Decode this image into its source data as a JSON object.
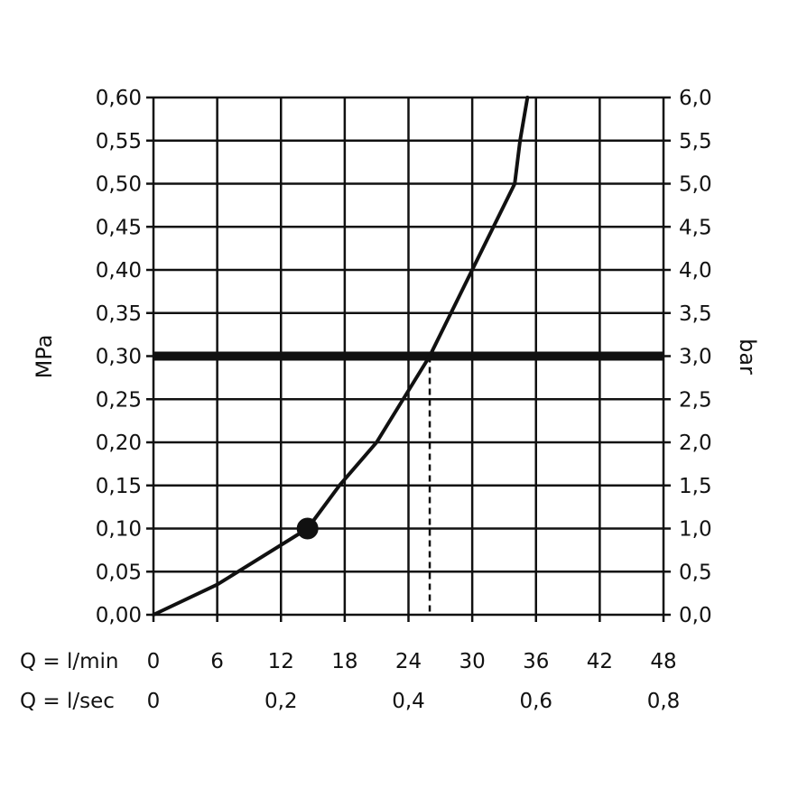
{
  "chart_data": {
    "type": "line",
    "left_axis": {
      "label": "MPa",
      "range": [
        0,
        0.6
      ],
      "ticks": [
        "0,00",
        "0,05",
        "0,10",
        "0,15",
        "0,20",
        "0,25",
        "0,30",
        "0,35",
        "0,40",
        "0,45",
        "0,50",
        "0,55",
        "0,60"
      ]
    },
    "right_axis": {
      "label": "bar",
      "range": [
        0,
        6
      ],
      "ticks": [
        "0,0",
        "0,5",
        "1,0",
        "1,5",
        "2,0",
        "2,5",
        "3,0",
        "3,5",
        "4,0",
        "4,5",
        "5,0",
        "5,5",
        "6,0"
      ]
    },
    "x_axis": {
      "range": [
        0,
        48
      ],
      "grid_step": 6,
      "primary_label": "Q = l/min",
      "primary_ticks": [
        {
          "value": 0,
          "label": "0"
        },
        {
          "value": 6,
          "label": "6"
        },
        {
          "value": 12,
          "label": "12"
        },
        {
          "value": 18,
          "label": "18"
        },
        {
          "value": 24,
          "label": "24"
        },
        {
          "value": 30,
          "label": "30"
        },
        {
          "value": 36,
          "label": "36"
        },
        {
          "value": 42,
          "label": "42"
        },
        {
          "value": 48,
          "label": "48"
        }
      ],
      "secondary_label": "Q = l/sec",
      "secondary_ticks": [
        {
          "value": 0,
          "label": "0"
        },
        {
          "value": 12,
          "label": "0,2"
        },
        {
          "value": 24,
          "label": "0,4"
        },
        {
          "value": 36,
          "label": "0,6"
        },
        {
          "value": 48,
          "label": "0,8"
        }
      ]
    },
    "grid": true,
    "series": [
      {
        "x": [
          0,
          6,
          14.5,
          17.5,
          21,
          26,
          30,
          34,
          34.5,
          35.2
        ],
        "y": [
          0,
          0.035,
          0.1,
          0.15,
          0.2,
          0.3,
          0.4,
          0.5,
          0.55,
          0.6
        ]
      }
    ],
    "marker_point": {
      "x": 14.5,
      "y": 0.1
    },
    "reference_line_y": 0.3,
    "dropline": {
      "x": 26,
      "y": 0.3
    }
  }
}
